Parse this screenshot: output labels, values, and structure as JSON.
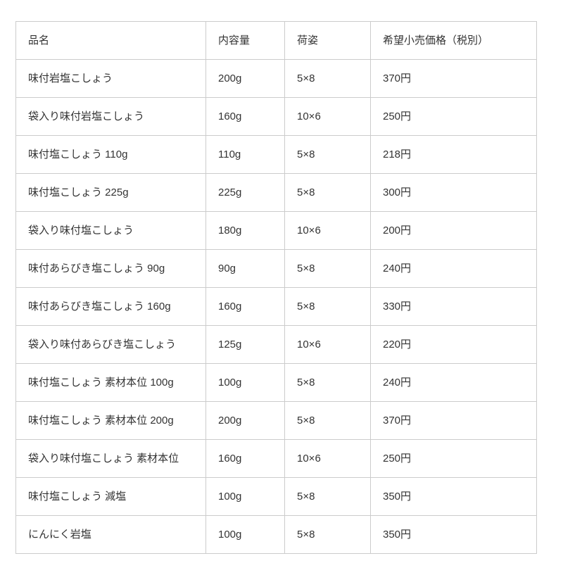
{
  "table": {
    "headers": [
      {
        "key": "name",
        "label": "品名"
      },
      {
        "key": "volume",
        "label": "内容量"
      },
      {
        "key": "packing",
        "label": "荷姿"
      },
      {
        "key": "price",
        "label": "希望小売価格（税別）"
      }
    ],
    "rows": [
      {
        "name": "味付岩塩こしょう",
        "volume": "200g",
        "packing": "5×8",
        "price": "370円"
      },
      {
        "name": "袋入り味付岩塩こしょう",
        "volume": "160g",
        "packing": "10×6",
        "price": "250円"
      },
      {
        "name": "味付塩こしょう 110g",
        "volume": "110g",
        "packing": "5×8",
        "price": "218円"
      },
      {
        "name": "味付塩こしょう 225g",
        "volume": "225g",
        "packing": "5×8",
        "price": "300円"
      },
      {
        "name": "袋入り味付塩こしょう",
        "volume": "180g",
        "packing": "10×6",
        "price": "200円"
      },
      {
        "name": "味付あらびき塩こしょう 90g",
        "volume": "90g",
        "packing": "5×8",
        "price": "240円"
      },
      {
        "name": "味付あらびき塩こしょう 160g",
        "volume": "160g",
        "packing": "5×8",
        "price": "330円"
      },
      {
        "name": "袋入り味付あらびき塩こしょう",
        "volume": "125g",
        "packing": "10×6",
        "price": "220円"
      },
      {
        "name": "味付塩こしょう 素材本位 100g",
        "volume": "100g",
        "packing": "5×8",
        "price": "240円"
      },
      {
        "name": "味付塩こしょう 素材本位 200g",
        "volume": "200g",
        "packing": "5×8",
        "price": "370円"
      },
      {
        "name": "袋入り味付塩こしょう 素材本位",
        "volume": "160g",
        "packing": "10×6",
        "price": "250円"
      },
      {
        "name": "味付塩こしょう 減塩",
        "volume": "100g",
        "packing": "5×8",
        "price": "350円"
      },
      {
        "name": "にんにく岩塩",
        "volume": "100g",
        "packing": "5×8",
        "price": "350円"
      }
    ],
    "colors": {
      "border": "#cccccc",
      "text": "#333333",
      "background": "#ffffff"
    }
  }
}
